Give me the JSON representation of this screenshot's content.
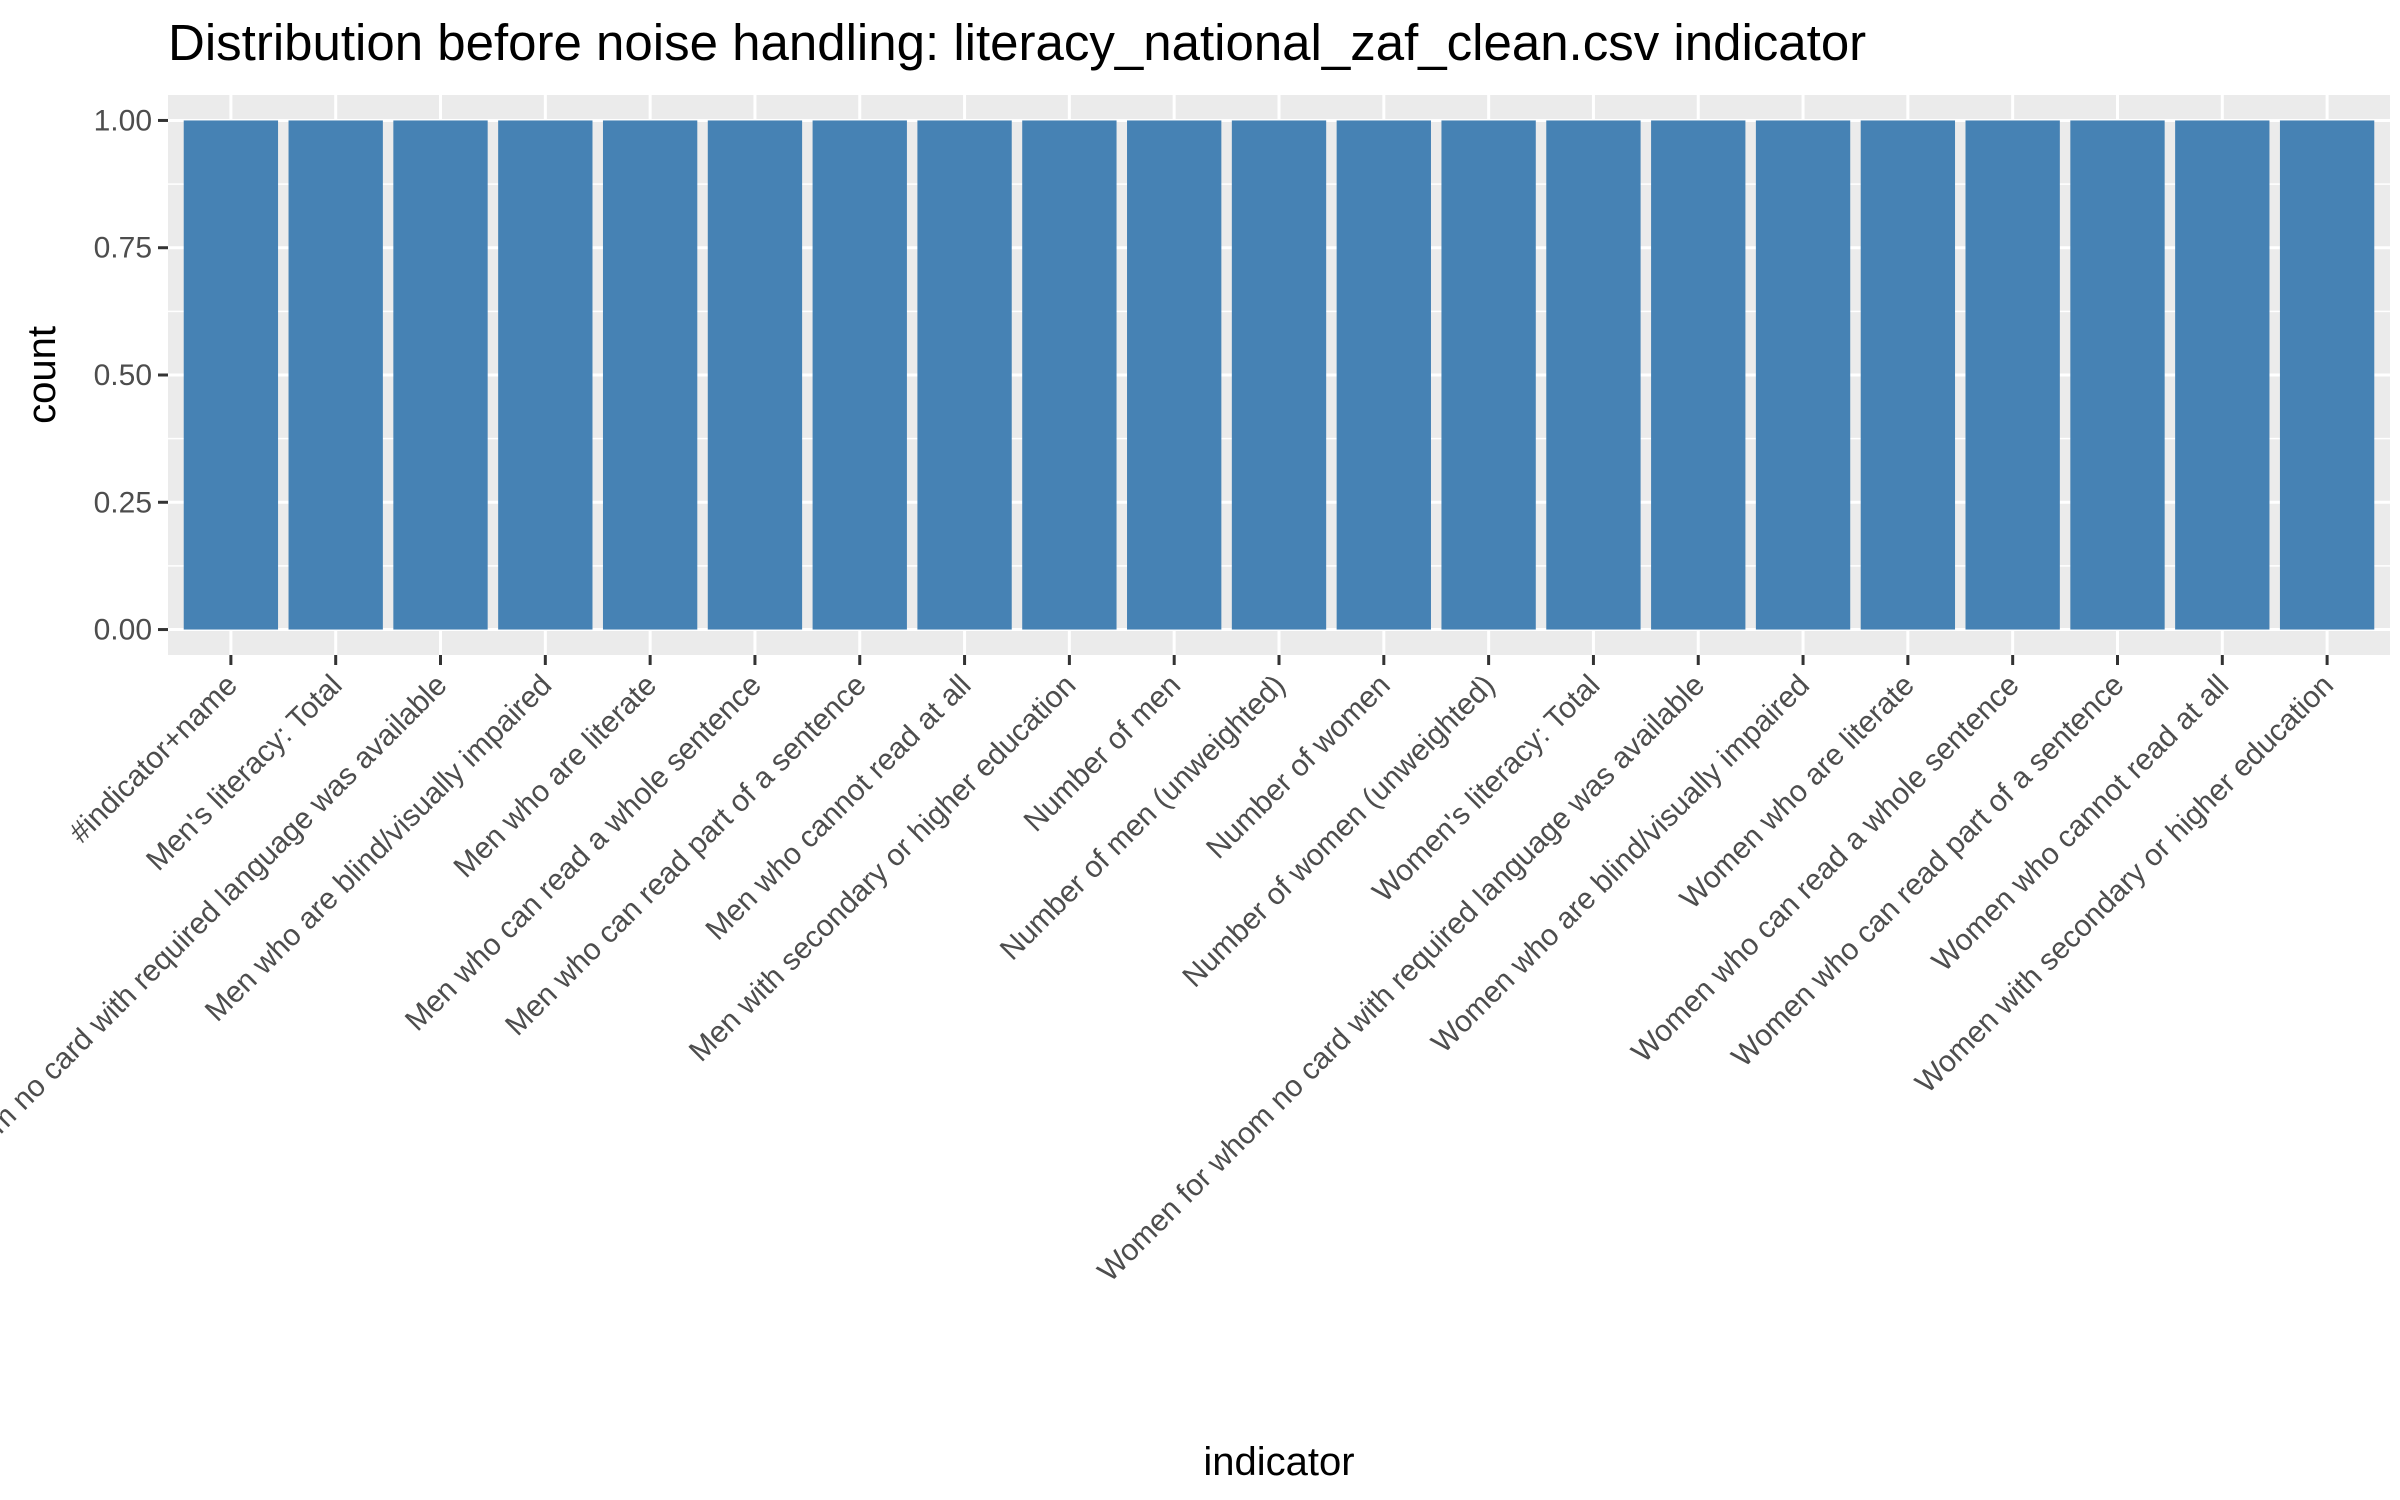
{
  "chart_data": {
    "type": "bar",
    "title": "Distribution before noise handling: literacy_national_zaf_clean.csv indicator",
    "xlabel": "indicator",
    "ylabel": "count",
    "ylim": [
      -0.05,
      1.05
    ],
    "yticks": [
      "0.00",
      "0.25",
      "0.50",
      "0.75",
      "1.00"
    ],
    "grid": true,
    "bar_color": "#4682b4",
    "panel_color": "#ebebeb",
    "categories": [
      "#indicator+name",
      "Men's literacy: Total",
      "Men for whom no card with required language was available",
      "Men who are blind/visually impaired",
      "Men who are literate",
      "Men who can read a whole sentence",
      "Men who can read part of a sentence",
      "Men who cannot read at all",
      "Men with secondary or higher education",
      "Number of men",
      "Number of men (unweighted)",
      "Number of women",
      "Number of women (unweighted)",
      "Women's literacy: Total",
      "Women for whom no card with required language was available",
      "Women who are blind/visually impaired",
      "Women who are literate",
      "Women who can read a whole sentence",
      "Women who can read part of a sentence",
      "Women who cannot read at all",
      "Women with secondary or higher education"
    ],
    "values": [
      1,
      1,
      1,
      1,
      1,
      1,
      1,
      1,
      1,
      1,
      1,
      1,
      1,
      1,
      1,
      1,
      1,
      1,
      1,
      1,
      1
    ]
  }
}
